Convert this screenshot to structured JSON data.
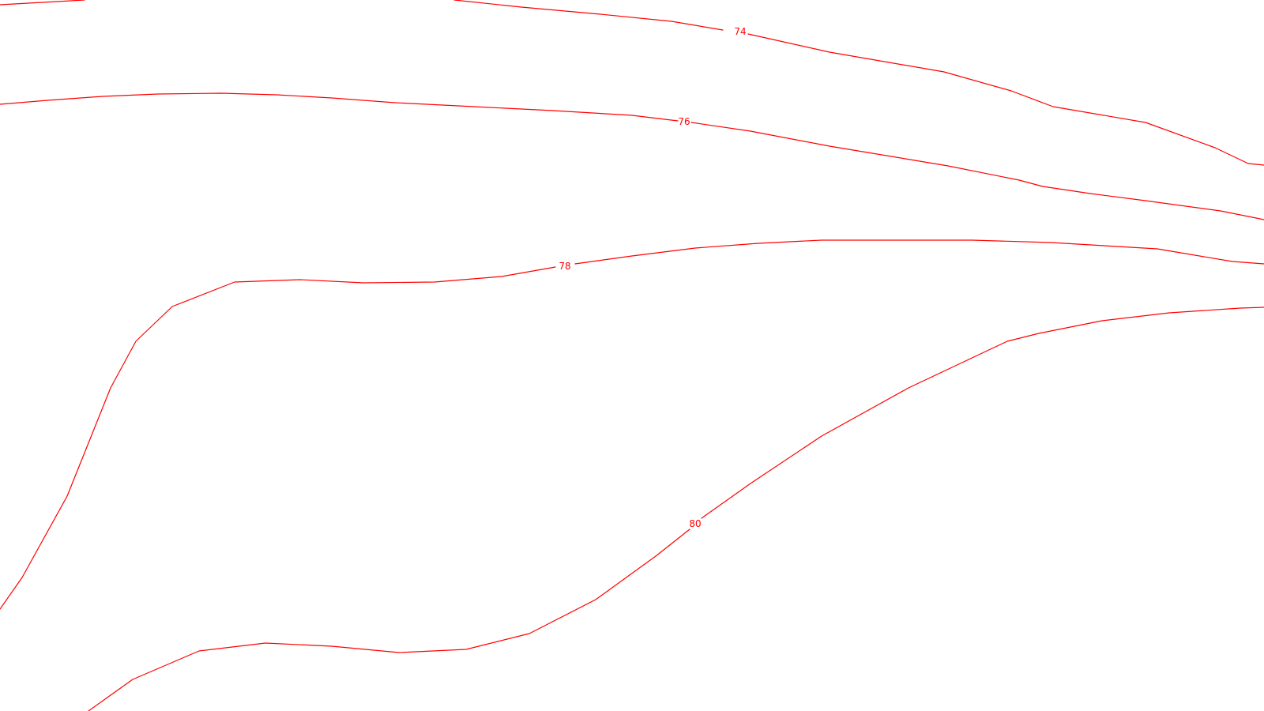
{
  "map": {
    "background_color": "#ffffff",
    "contour_color": "#ff0000",
    "contours": [
      {
        "id": "edge-top-left",
        "label": ""
      },
      {
        "id": "74",
        "label": "74"
      },
      {
        "id": "76",
        "label": "76"
      },
      {
        "id": "78",
        "label": "78"
      },
      {
        "id": "80",
        "label": "80"
      }
    ]
  }
}
